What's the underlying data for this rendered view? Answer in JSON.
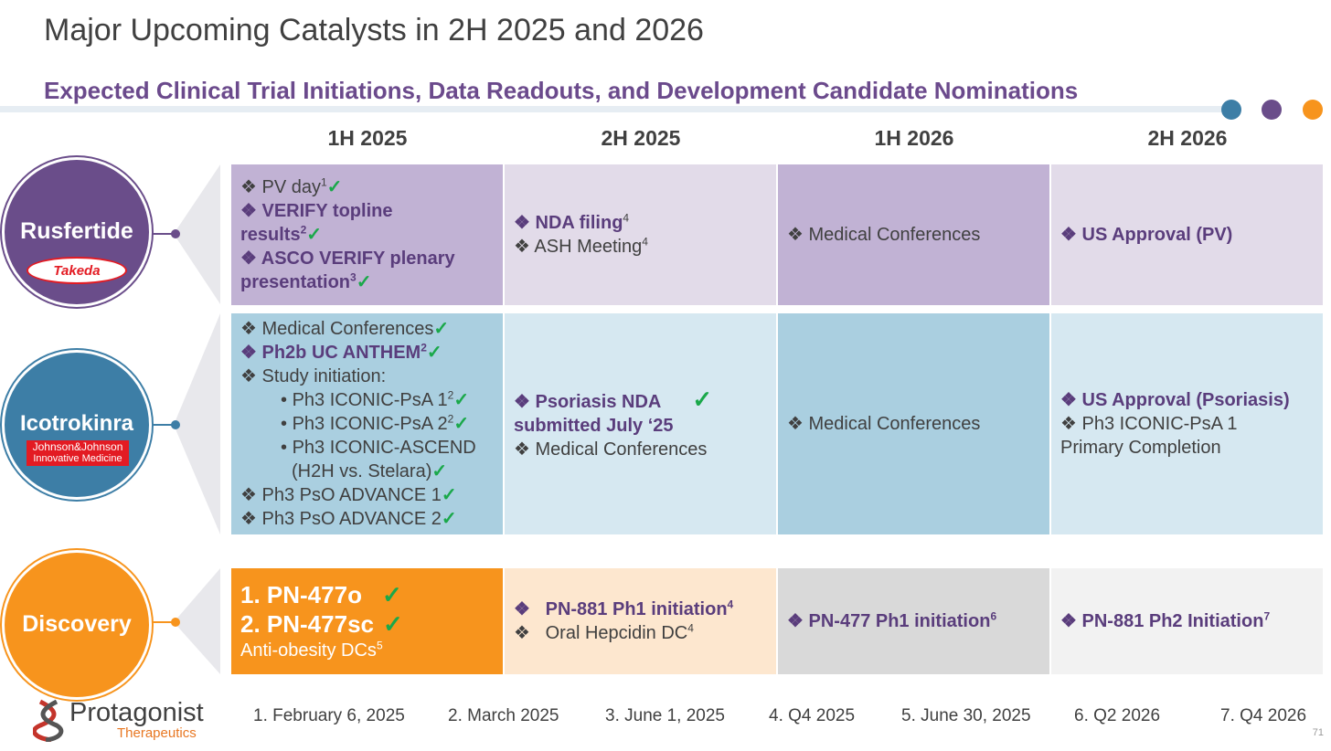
{
  "title": "Major Upcoming Catalysts in 2H 2025 and 2026",
  "subtitle": "Expected Clinical Trial Initiations, Data Readouts, and Development Candidate Nominations",
  "colors": {
    "dot1": "#3d7ea6",
    "dot2": "#6a4d8a",
    "dot3": "#f7941d"
  },
  "columns": [
    "1H 2025",
    "2H 2025",
    "1H 2026",
    "2H 2026"
  ],
  "programs": {
    "rusfertide": {
      "name": "Rusfertide",
      "partner": "Takeda"
    },
    "icotrokinra": {
      "name": "Icotrokinra",
      "partner_line1": "Johnson&Johnson",
      "partner_line2": "Innovative Medicine"
    },
    "discovery": {
      "name": "Discovery"
    }
  },
  "bullet": "❖",
  "check": "✓",
  "cells": {
    "r1c1": {
      "l1": "PV day",
      "l1s": "1",
      "l2": "VERIFY topline",
      "l2b": "results",
      "l2s": "2",
      "l3": "ASCO VERIFY plenary",
      "l3b": "presentation",
      "l3s": "3"
    },
    "r1c2": {
      "l1": "NDA filing",
      "l1s": "4",
      "l2": "ASH Meeting",
      "l2s": "4"
    },
    "r1c3": {
      "l1": "Medical Conferences"
    },
    "r1c4": {
      "l1": "US Approval (PV)"
    },
    "r2c1": {
      "l1": "Medical Conferences",
      "l2": "Ph2b UC ANTHEM",
      "l2s": "2",
      "l3": "Study initiation:",
      "s1": "Ph3 ICONIC-PsA 1",
      "s1s": "2",
      "s2": "Ph3 ICONIC-PsA 2",
      "s2s": "2",
      "s3": "Ph3 ICONIC-ASCEND",
      "s3b": "(H2H vs. Stelara)",
      "l4": "Ph3 PsO ADVANCE 1",
      "l5": "Ph3 PsO ADVANCE 2"
    },
    "r2c2": {
      "l1": "Psoriasis NDA",
      "l1b": "submitted July ‘25",
      "l2": "Medical Conferences"
    },
    "r2c3": {
      "l1": "Medical Conferences"
    },
    "r2c4": {
      "l1": "US Approval (Psoriasis)",
      "l2": "Ph3 ICONIC-PsA 1",
      "l2b": "Primary Completion"
    },
    "r3c1": {
      "l1": "1. PN-477o",
      "l2": "2. PN-477sc",
      "l3": "Anti-obesity DCs",
      "l3s": "5"
    },
    "r3c2": {
      "l1": "PN-881 Ph1 initiation",
      "l1s": "4",
      "l2": "Oral Hepcidin DC",
      "l2s": "4"
    },
    "r3c3": {
      "l1": "PN-477 Ph1 initiation",
      "l1s": "6"
    },
    "r3c4": {
      "l1": "PN-881 Ph2 Initiation",
      "l1s": "7"
    }
  },
  "logo": {
    "name": "Protagonist",
    "tag": "Therapeutics"
  },
  "footnotes": [
    "1. February 6, 2025",
    "2. March 2025",
    "3. June 1, 2025",
    "4. Q4 2025",
    "5. June 30, 2025",
    "6. Q2 2026",
    "7. Q4 2026"
  ],
  "page_number": "71"
}
